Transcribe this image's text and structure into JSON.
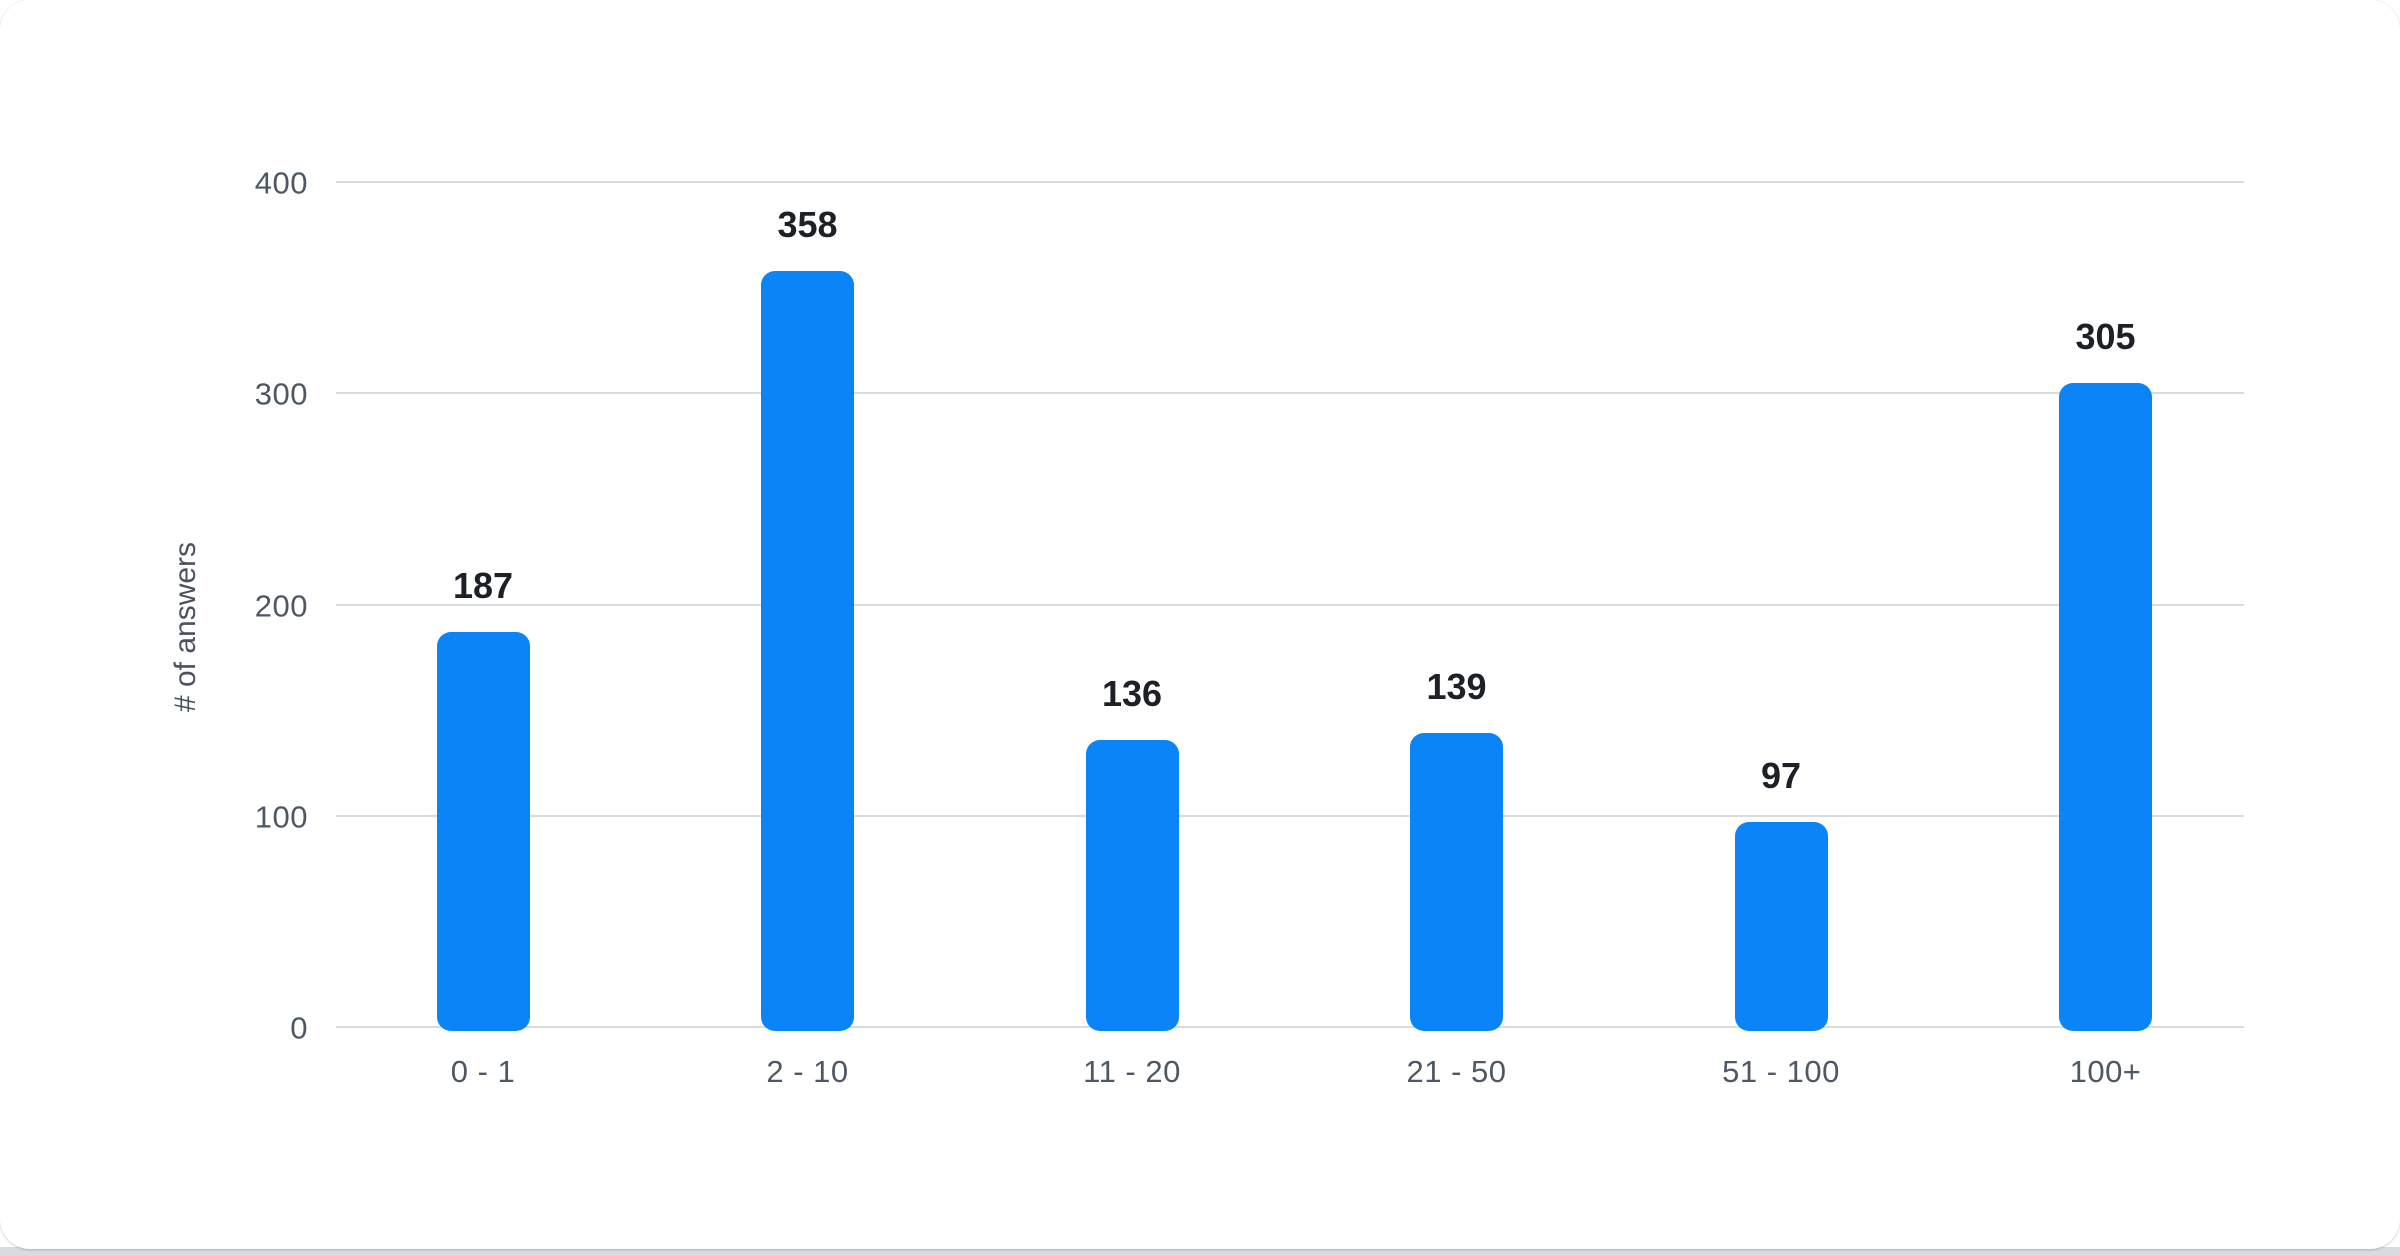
{
  "page": {
    "card_background": "#ffffff",
    "behind_color": "#d8dbdf"
  },
  "chart_data": {
    "type": "bar",
    "categories": [
      "0 - 1",
      "2 - 10",
      "11 - 20",
      "21 - 50",
      "51 - 100",
      "100+"
    ],
    "values": [
      187,
      358,
      136,
      139,
      97,
      305
    ],
    "title": "",
    "xlabel": "",
    "ylabel": "# of answers",
    "yticks": [
      0,
      100,
      200,
      300,
      400
    ],
    "ylim": [
      0,
      400
    ],
    "grid": true,
    "legend": false,
    "colors": {
      "bar": "#0b84f8",
      "gridline": "#d9dcdd",
      "axis_text": "#4e5865",
      "ytitle_text": "#49525e",
      "value_label": "#1d2127"
    }
  }
}
